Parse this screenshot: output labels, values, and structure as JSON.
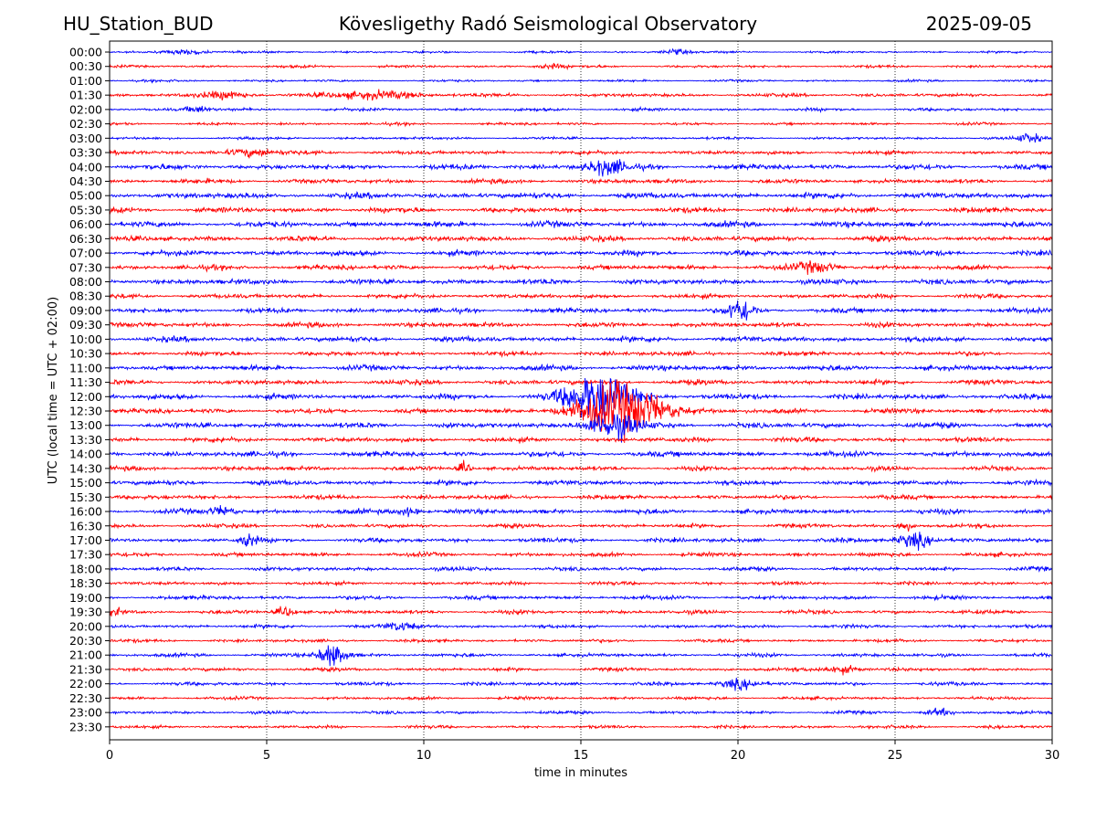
{
  "header": {
    "station": "HU_Station_BUD",
    "observatory": "Kövesligethy Radó Seismological Observatory",
    "date": "2025-09-05"
  },
  "chart_data": {
    "type": "line",
    "title": "Kövesligethy Radó Seismological Observatory",
    "xlabel": "time in minutes",
    "ylabel": "UTC (local time = UTC + 02:00)",
    "xlim": [
      0,
      30
    ],
    "xticks": [
      0,
      5,
      10,
      15,
      20,
      25,
      30
    ],
    "grid": "vertical dotted at x ticks",
    "colors": [
      "#0000ff",
      "#ff0000"
    ],
    "rows": [
      "00:00",
      "00:30",
      "01:00",
      "01:30",
      "02:00",
      "02:30",
      "03:00",
      "03:30",
      "04:00",
      "04:30",
      "05:00",
      "05:30",
      "06:00",
      "06:30",
      "07:00",
      "07:30",
      "08:00",
      "08:30",
      "09:00",
      "09:30",
      "10:00",
      "10:30",
      "11:00",
      "11:30",
      "12:00",
      "12:30",
      "13:00",
      "13:30",
      "14:00",
      "14:30",
      "15:00",
      "15:30",
      "16:00",
      "16:30",
      "17:00",
      "17:30",
      "18:00",
      "18:30",
      "19:00",
      "19:30",
      "20:00",
      "20:30",
      "21:00",
      "21:30",
      "22:00",
      "22:30",
      "23:00",
      "23:30"
    ],
    "noise_level": [
      0.25,
      0.3,
      0.25,
      0.4,
      0.35,
      0.3,
      0.3,
      0.45,
      0.6,
      0.5,
      0.65,
      0.6,
      0.65,
      0.6,
      0.6,
      0.55,
      0.6,
      0.5,
      0.55,
      0.55,
      0.6,
      0.5,
      0.6,
      0.55,
      0.6,
      0.55,
      0.6,
      0.55,
      0.6,
      0.5,
      0.55,
      0.5,
      0.55,
      0.45,
      0.5,
      0.45,
      0.45,
      0.4,
      0.45,
      0.45,
      0.4,
      0.35,
      0.4,
      0.4,
      0.4,
      0.35,
      0.35,
      0.35
    ],
    "events": [
      {
        "row": "00:00",
        "minute": 2.5,
        "amplitude": 0.6,
        "duration": 1.2
      },
      {
        "row": "00:00",
        "minute": 18.0,
        "amplitude": 0.6,
        "duration": 0.8
      },
      {
        "row": "00:30",
        "minute": 14.0,
        "amplitude": 0.5,
        "duration": 1.0
      },
      {
        "row": "01:30",
        "minute": 3.8,
        "amplitude": 0.8,
        "duration": 1.5
      },
      {
        "row": "01:30",
        "minute": 8.5,
        "amplitude": 0.8,
        "duration": 3.0
      },
      {
        "row": "02:00",
        "minute": 2.8,
        "amplitude": 0.7,
        "duration": 0.8
      },
      {
        "row": "03:00",
        "minute": 29.3,
        "amplitude": 1.0,
        "duration": 0.8
      },
      {
        "row": "03:30",
        "minute": 4.5,
        "amplitude": 0.9,
        "duration": 1.5
      },
      {
        "row": "04:00",
        "minute": 15.8,
        "amplitude": 1.8,
        "duration": 1.2
      },
      {
        "row": "07:30",
        "minute": 22.5,
        "amplitude": 1.2,
        "duration": 1.2
      },
      {
        "row": "09:00",
        "minute": 20.1,
        "amplitude": 2.6,
        "duration": 0.8
      },
      {
        "row": "12:00",
        "minute": 15.6,
        "amplitude": 5.5,
        "duration": 2.2
      },
      {
        "row": "12:30",
        "minute": 16.3,
        "amplitude": 6.0,
        "duration": 2.8
      },
      {
        "row": "13:00",
        "minute": 16.0,
        "amplitude": 3.0,
        "duration": 1.6
      },
      {
        "row": "14:30",
        "minute": 11.3,
        "amplitude": 1.4,
        "duration": 0.4
      },
      {
        "row": "16:00",
        "minute": 3.6,
        "amplitude": 1.0,
        "duration": 0.8
      },
      {
        "row": "16:00",
        "minute": 9.5,
        "amplitude": 1.0,
        "duration": 0.8
      },
      {
        "row": "16:30",
        "minute": 25.3,
        "amplitude": 1.2,
        "duration": 0.4
      },
      {
        "row": "17:00",
        "minute": 4.4,
        "amplitude": 1.6,
        "duration": 0.5
      },
      {
        "row": "17:00",
        "minute": 25.6,
        "amplitude": 1.8,
        "duration": 1.0
      },
      {
        "row": "19:30",
        "minute": 0.1,
        "amplitude": 1.0,
        "duration": 0.5
      },
      {
        "row": "19:30",
        "minute": 5.6,
        "amplitude": 1.2,
        "duration": 0.6
      },
      {
        "row": "20:00",
        "minute": 9.3,
        "amplitude": 0.9,
        "duration": 1.0
      },
      {
        "row": "21:00",
        "minute": 7.1,
        "amplitude": 2.5,
        "duration": 0.9
      },
      {
        "row": "21:30",
        "minute": 23.3,
        "amplitude": 0.9,
        "duration": 1.2
      },
      {
        "row": "22:00",
        "minute": 20.0,
        "amplitude": 1.1,
        "duration": 1.2
      },
      {
        "row": "23:00",
        "minute": 26.4,
        "amplitude": 0.8,
        "duration": 0.8
      }
    ]
  }
}
